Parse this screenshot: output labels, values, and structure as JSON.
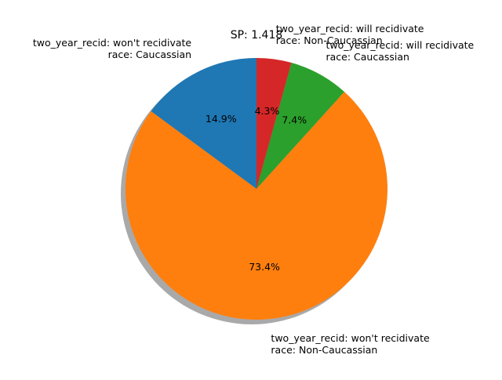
{
  "chart_data": {
    "type": "pie",
    "title": "SP: 1.418",
    "slices": [
      {
        "label_lines": [
          "two_year_recid: won't recidivate",
          "race: Caucassian"
        ],
        "value": 14.9,
        "pct_label": "14.9%",
        "color": "#1f77b4"
      },
      {
        "label_lines": [
          "two_year_recid: won't recidivate",
          "race: Non-Caucassian"
        ],
        "value": 73.4,
        "pct_label": "73.4%",
        "color": "#ff7f0e"
      },
      {
        "label_lines": [
          "two_year_recid: will recidivate",
          "race: Caucassian"
        ],
        "value": 7.4,
        "pct_label": "7.4%",
        "color": "#2ca02c"
      },
      {
        "label_lines": [
          "two_year_recid: will recidivate",
          "race: Non-Caucassian"
        ],
        "value": 4.3,
        "pct_label": "4.3%",
        "color": "#d62728"
      }
    ],
    "start_angle_deg": 90,
    "direction": "counterclockwise",
    "shadow": true
  }
}
